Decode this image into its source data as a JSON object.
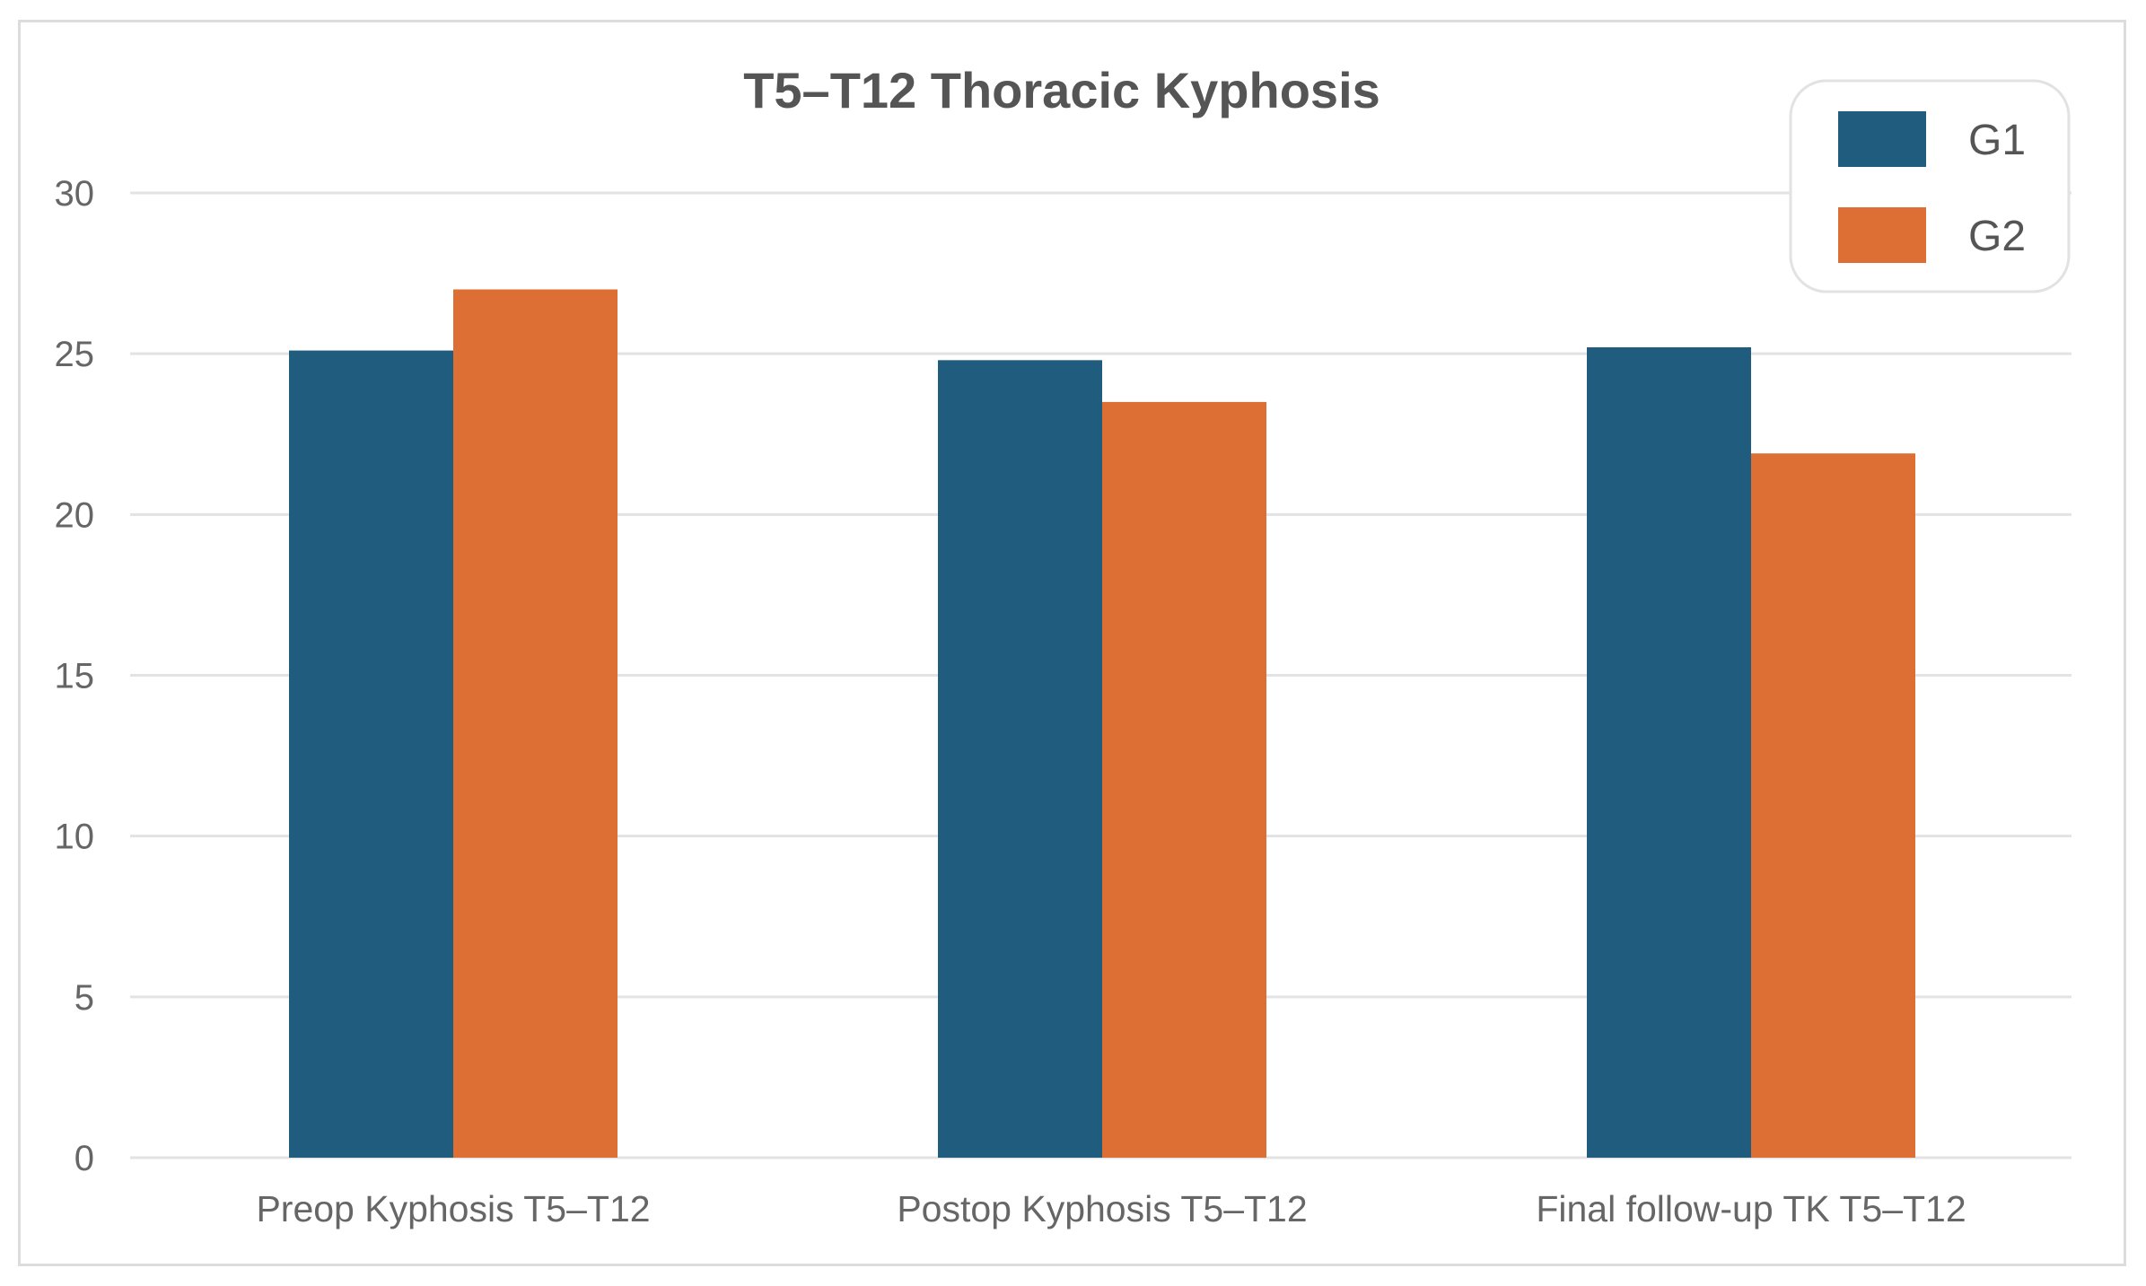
{
  "chart_data": {
    "type": "bar",
    "title": "T5–T12 Thoracic Kyphosis",
    "xlabel": "",
    "ylabel": "",
    "categories": [
      "Preop Kyphosis T5–T12",
      "Postop Kyphosis T5–T12",
      "Final follow-up TK T5–T12"
    ],
    "series": [
      {
        "name": "G1",
        "color": "#1f5c7d",
        "values": [
          25.1,
          24.8,
          25.2
        ]
      },
      {
        "name": "G2",
        "color": "#dd6e34",
        "values": [
          27.0,
          23.5,
          21.9
        ]
      }
    ],
    "ylim": [
      0,
      30
    ],
    "yticks": [
      0,
      5,
      10,
      15,
      20,
      25,
      30
    ],
    "grid": true,
    "legend_position": "top-right"
  }
}
